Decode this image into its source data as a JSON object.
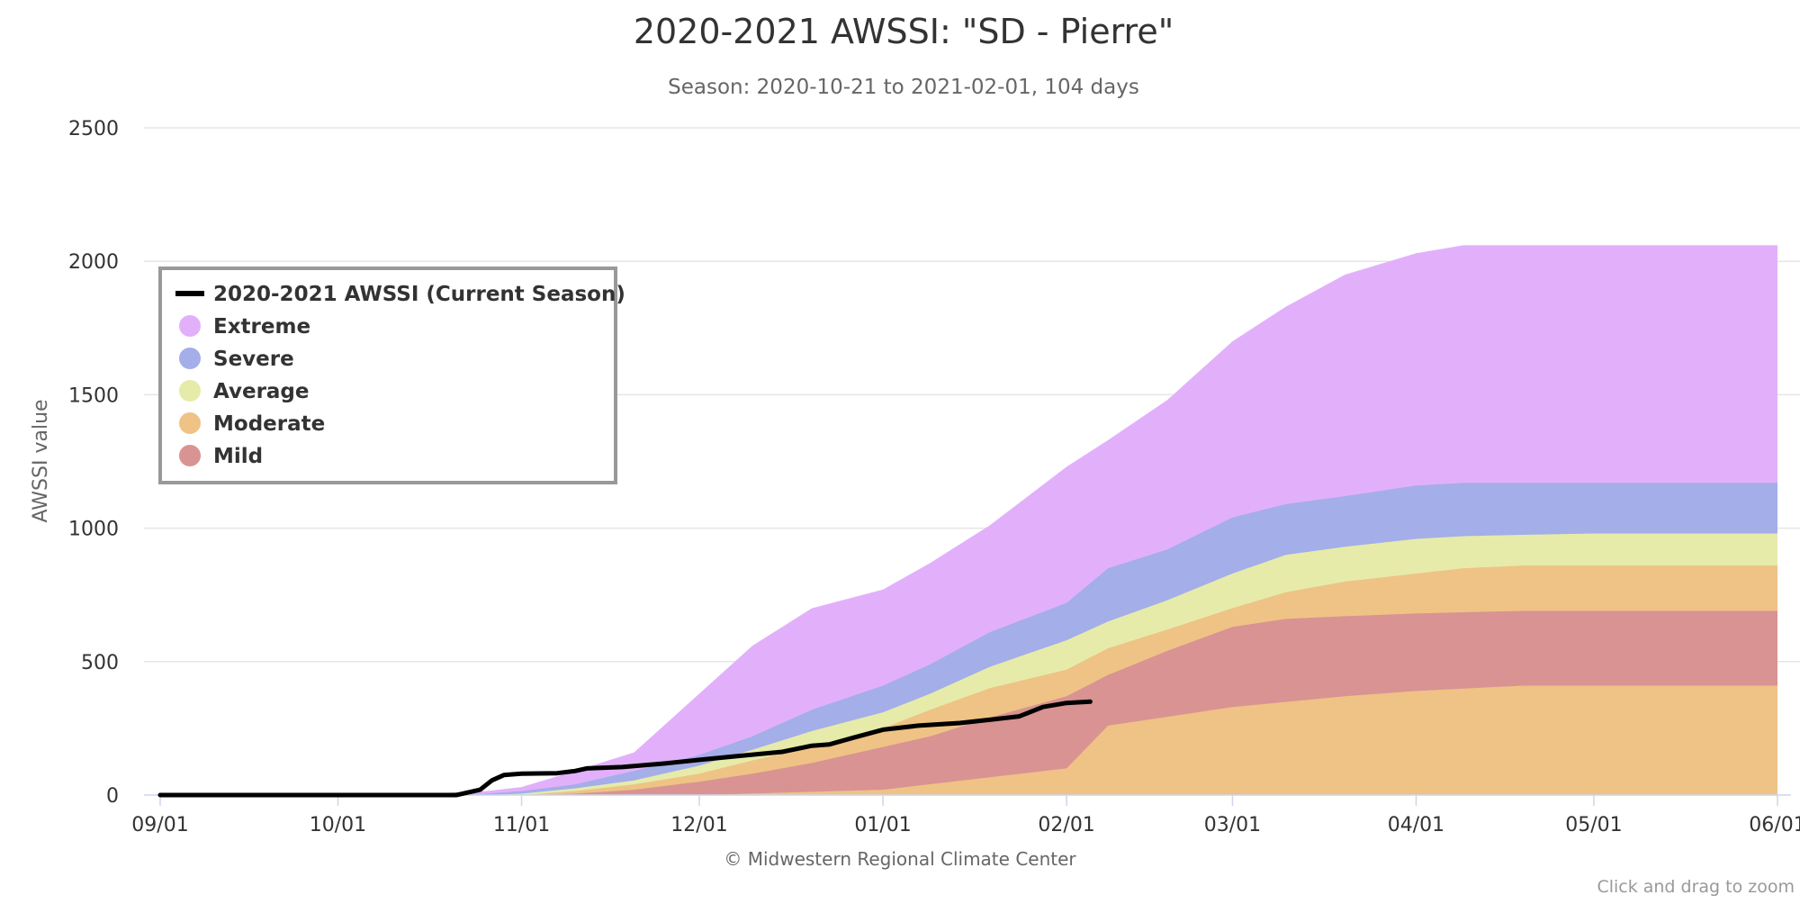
{
  "chart_data": {
    "type": "area",
    "title": "2020-2021 AWSSI: \"SD - Pierre\"",
    "subtitle": "Season: 2020-10-21 to 2021-02-01, 104 days",
    "ylabel": "AWSSI value",
    "xlabel": "",
    "ylim": [
      0,
      2500
    ],
    "yticks": [
      0,
      500,
      1000,
      1500,
      2000,
      2500
    ],
    "xlim": [
      "09/01",
      "06/01"
    ],
    "xticks": [
      {
        "label": "09/01",
        "day": 0
      },
      {
        "label": "10/01",
        "day": 30
      },
      {
        "label": "11/01",
        "day": 61
      },
      {
        "label": "12/01",
        "day": 91
      },
      {
        "label": "01/01",
        "day": 122
      },
      {
        "label": "02/01",
        "day": 153
      },
      {
        "label": "03/01",
        "day": 181
      },
      {
        "label": "04/01",
        "day": 212
      },
      {
        "label": "05/01",
        "day": 242
      },
      {
        "label": "06/01",
        "day": 273
      }
    ],
    "grid": true,
    "legend_position": "top-left",
    "credit": "© Midwestern Regional Climate Center",
    "zoom_hint": "Click and drag to zoom",
    "x_days": [
      0,
      30,
      45,
      55,
      61,
      70,
      80,
      91,
      100,
      110,
      122,
      130,
      140,
      153,
      160,
      170,
      181,
      190,
      200,
      212,
      220,
      230,
      242,
      260,
      273
    ],
    "bands": [
      {
        "name": "Extreme",
        "color": "#e2b0fb",
        "values": [
          0,
          0,
          5,
          15,
          30,
          90,
          160,
          380,
          560,
          700,
          770,
          870,
          1010,
          1230,
          1330,
          1480,
          1700,
          1830,
          1950,
          2030,
          2060,
          2060,
          2060,
          2060,
          2060
        ]
      },
      {
        "name": "Severe",
        "color": "#a4aee8",
        "values": [
          0,
          0,
          0,
          5,
          15,
          40,
          90,
          150,
          220,
          320,
          410,
          490,
          610,
          720,
          850,
          920,
          1040,
          1090,
          1120,
          1160,
          1170,
          1170,
          1170,
          1170,
          1170
        ]
      },
      {
        "name": "Average",
        "color": "#e6ebaa",
        "values": [
          0,
          0,
          0,
          0,
          5,
          25,
          55,
          110,
          170,
          240,
          310,
          380,
          480,
          580,
          650,
          730,
          830,
          900,
          930,
          960,
          970,
          975,
          980,
          980,
          980
        ]
      },
      {
        "name": "Moderate",
        "color": "#eec385",
        "values": [
          0,
          0,
          0,
          0,
          0,
          15,
          40,
          80,
          130,
          180,
          250,
          320,
          400,
          470,
          550,
          620,
          700,
          760,
          800,
          830,
          850,
          860,
          860,
          860,
          860
        ]
      },
      {
        "name": "Mild",
        "color": "#d99393",
        "values": [
          0,
          0,
          0,
          0,
          0,
          5,
          20,
          50,
          80,
          120,
          180,
          220,
          290,
          370,
          450,
          540,
          630,
          660,
          670,
          680,
          685,
          690,
          690,
          690,
          690
        ]
      }
    ],
    "band_floor": {
      "x_days": [
        0,
        61,
        91,
        122,
        153,
        160,
        181,
        200,
        212,
        230,
        273
      ],
      "values": [
        0,
        0,
        0,
        20,
        100,
        260,
        330,
        370,
        390,
        410,
        410
      ]
    },
    "series": [
      {
        "name": "2020-2021 AWSSI (Current Season)",
        "color": "#000000",
        "x_days": [
          0,
          50,
          54,
          56,
          58,
          61,
          67,
          70,
          72,
          78,
          85,
          91,
          98,
          105,
          110,
          113,
          117,
          122,
          128,
          135,
          140,
          145,
          149,
          153,
          157
        ],
        "values": [
          0,
          0,
          20,
          55,
          75,
          80,
          82,
          90,
          100,
          105,
          118,
          132,
          147,
          162,
          185,
          190,
          215,
          245,
          260,
          270,
          282,
          295,
          330,
          345,
          350
        ]
      }
    ]
  }
}
